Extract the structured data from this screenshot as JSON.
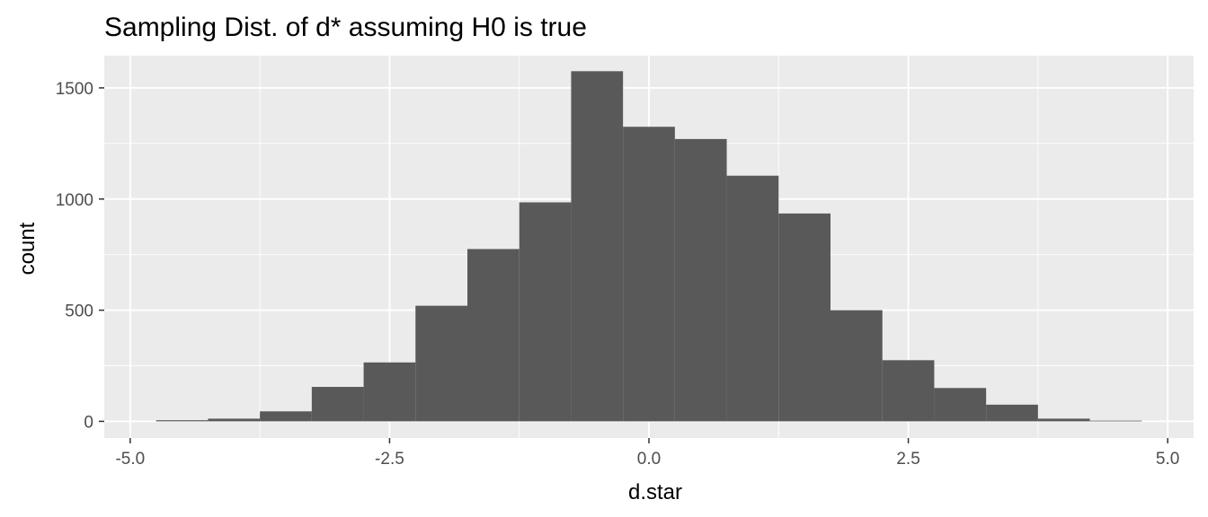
{
  "chart_data": {
    "type": "bar",
    "title": "Sampling Dist. of d* assuming H0 is true",
    "xlabel": "d.star",
    "ylabel": "count",
    "bin_width": 0.5,
    "bins": [
      {
        "x0": -4.75,
        "x1": -4.25,
        "count": 5
      },
      {
        "x0": -4.25,
        "x1": -3.75,
        "count": 12
      },
      {
        "x0": -3.75,
        "x1": -3.25,
        "count": 45
      },
      {
        "x0": -3.25,
        "x1": -2.75,
        "count": 155
      },
      {
        "x0": -2.75,
        "x1": -2.25,
        "count": 265
      },
      {
        "x0": -2.25,
        "x1": -1.75,
        "count": 520
      },
      {
        "x0": -1.75,
        "x1": -1.25,
        "count": 775
      },
      {
        "x0": -1.25,
        "x1": -0.75,
        "count": 985
      },
      {
        "x0": -0.75,
        "x1": -0.25,
        "count": 1575
      },
      {
        "x0": -0.25,
        "x1": 0.25,
        "count": 1325
      },
      {
        "x0": 0.25,
        "x1": 0.75,
        "count": 1270
      },
      {
        "x0": 0.75,
        "x1": 1.25,
        "count": 1105
      },
      {
        "x0": 1.25,
        "x1": 1.75,
        "count": 935
      },
      {
        "x0": 1.75,
        "x1": 2.25,
        "count": 500
      },
      {
        "x0": 2.25,
        "x1": 2.75,
        "count": 275
      },
      {
        "x0": 2.75,
        "x1": 3.25,
        "count": 150
      },
      {
        "x0": 3.25,
        "x1": 3.75,
        "count": 75
      },
      {
        "x0": 3.75,
        "x1": 4.25,
        "count": 12
      },
      {
        "x0": 4.25,
        "x1": 4.75,
        "count": 3
      }
    ],
    "xlim": [
      -5.25,
      5.25
    ],
    "ylim": [
      -75,
      1645
    ],
    "x_ticks": [
      -5.0,
      -2.5,
      0.0,
      2.5,
      5.0
    ],
    "x_tick_labels": [
      "-5.0",
      "-2.5",
      "0.0",
      "2.5",
      "5.0"
    ],
    "y_ticks": [
      0,
      500,
      1000,
      1500
    ],
    "y_tick_labels": [
      "0",
      "500",
      "1000",
      "1500"
    ],
    "grid": true,
    "colors": {
      "panel_background": "#ebebeb",
      "grid_major": "#ffffff",
      "bar_fill": "#595959",
      "tick_text": "#4d4d4d",
      "tick_mark": "#333333"
    }
  }
}
